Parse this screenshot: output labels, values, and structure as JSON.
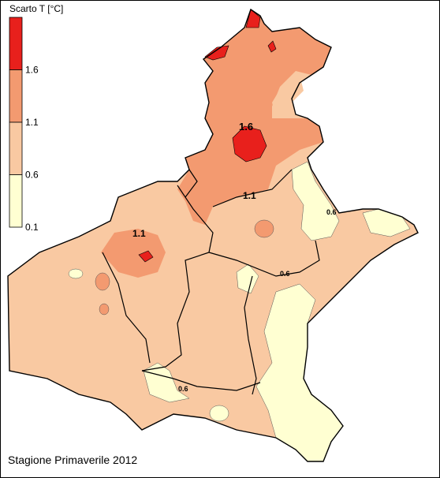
{
  "legend": {
    "title": "Scarto T [°C]",
    "ticks": [
      1.6,
      1.1,
      0.6,
      0.1
    ],
    "colors": [
      "#e8201c",
      "#f39a70",
      "#f9c9a2",
      "#ffffd2"
    ]
  },
  "contour_labels": [
    1.6,
    1.1,
    1.1,
    0.6,
    0.6,
    0.6
  ],
  "caption": "Stagione Primaverile 2012"
}
